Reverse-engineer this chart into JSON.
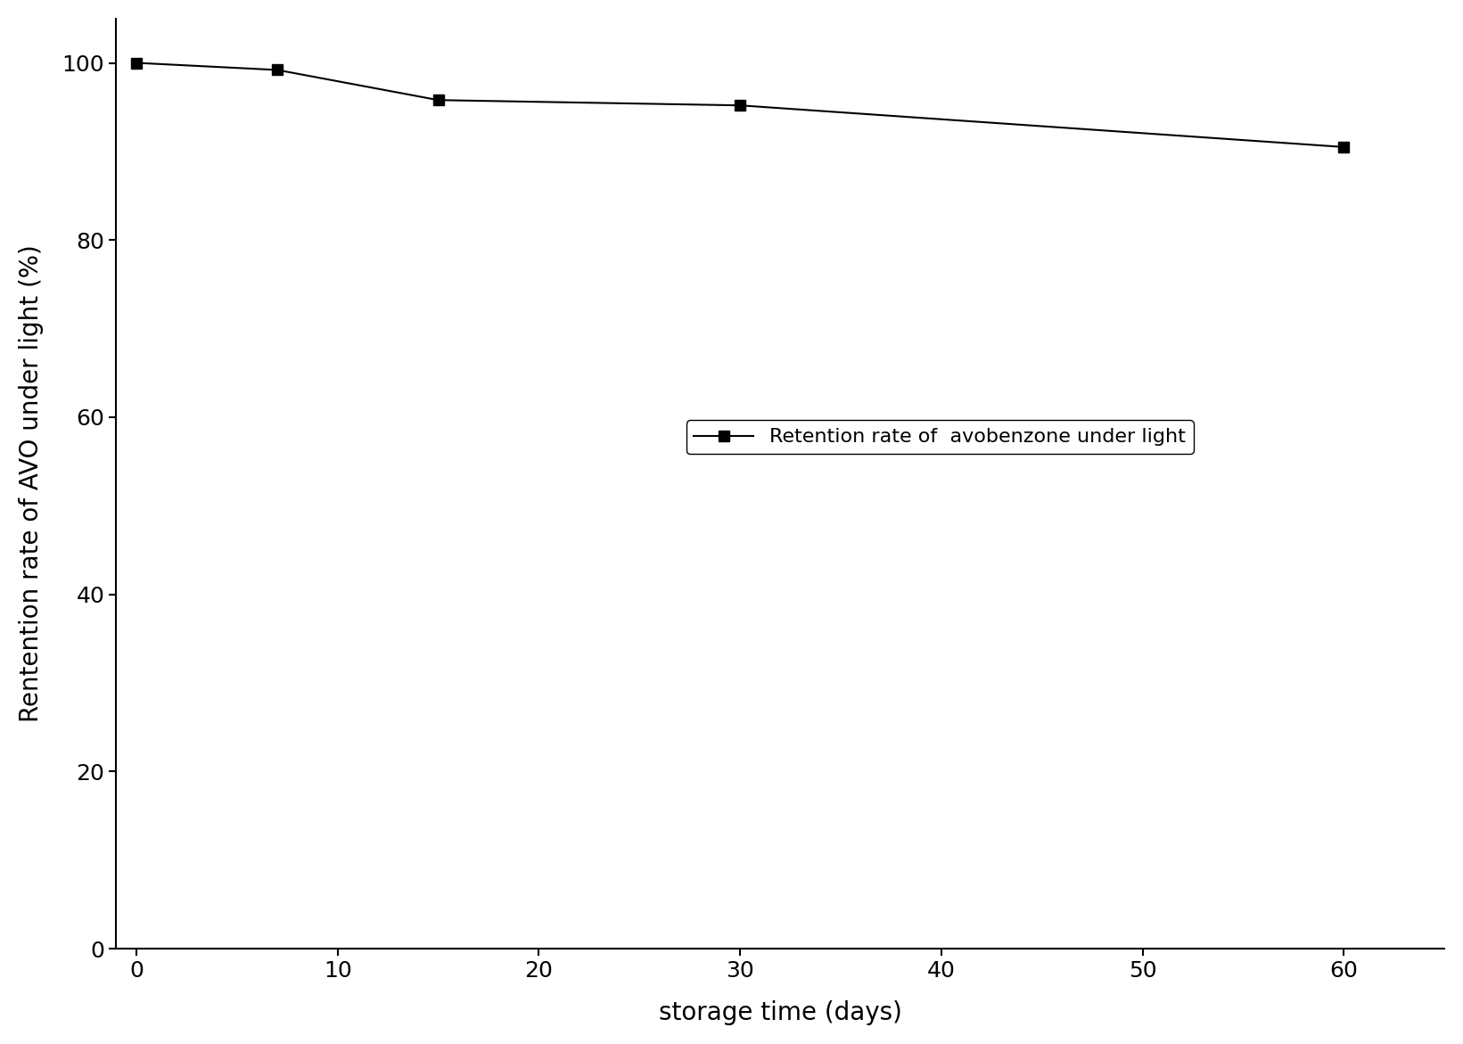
{
  "x": [
    0,
    7,
    15,
    30,
    60
  ],
  "y": [
    100,
    99.2,
    95.8,
    95.2,
    90.5
  ],
  "xlabel": "storage time (days)",
  "ylabel": "Rentention rate of AVO under light (%)",
  "legend_label": "Retention rate of  avobenzone under light",
  "line_color": "#000000",
  "marker": "s",
  "marker_color": "#000000",
  "marker_size": 8,
  "line_width": 1.5,
  "xlim": [
    -1,
    65
  ],
  "ylim": [
    0,
    105
  ],
  "xticks": [
    0,
    10,
    20,
    30,
    40,
    50,
    60
  ],
  "yticks": [
    0,
    20,
    40,
    60,
    80,
    100
  ],
  "background_color": "#ffffff",
  "tick_fontsize": 18,
  "label_fontsize": 20,
  "legend_fontsize": 16
}
